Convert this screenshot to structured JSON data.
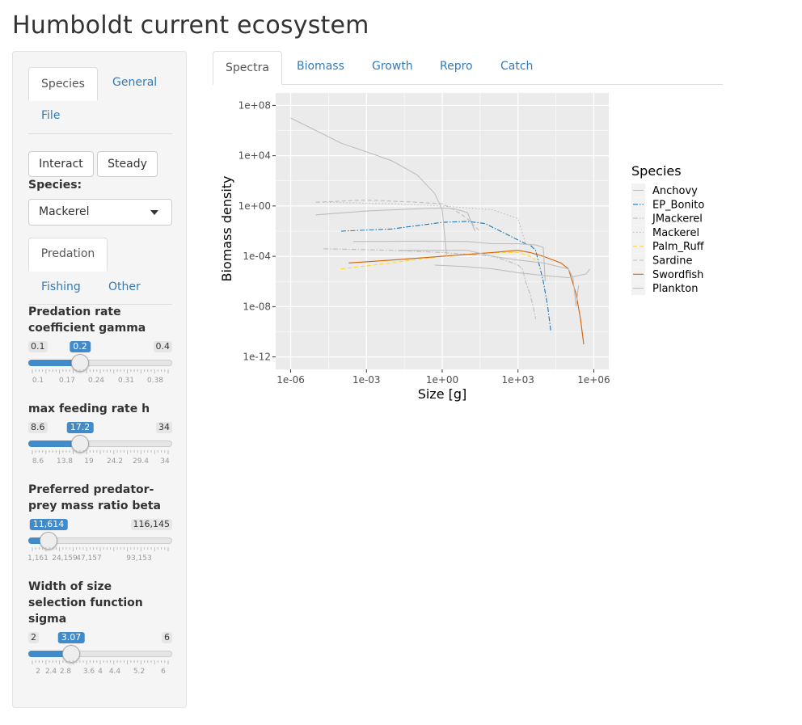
{
  "title": "Humboldt current ecosystem",
  "sidebar": {
    "tabs": [
      "Species",
      "General",
      "File"
    ],
    "buttons": {
      "interact": "Interact",
      "steady": "Steady"
    },
    "species_label": "Species:",
    "species_selected": "Mackerel",
    "subtabs": [
      "Predation",
      "Fishing",
      "Other"
    ],
    "sliders": [
      {
        "label": "Predation rate coefficient gamma",
        "min": "0.1",
        "max": "0.4",
        "value": "0.2",
        "fraction": 0.36,
        "ticks": [
          {
            "t": "0.1",
            "f": 0.07
          },
          {
            "t": "0.17",
            "f": 0.27
          },
          {
            "t": "0.24",
            "f": 0.47
          },
          {
            "t": "0.31",
            "f": 0.68
          },
          {
            "t": "0.38",
            "f": 0.88
          }
        ]
      },
      {
        "label": "max feeding rate h",
        "min": "8.6",
        "max": "34",
        "value": "17.2",
        "fraction": 0.36,
        "ticks": [
          {
            "t": "8.6",
            "f": 0.07
          },
          {
            "t": "13.8",
            "f": 0.25
          },
          {
            "t": "19",
            "f": 0.42
          },
          {
            "t": "24.2",
            "f": 0.6
          },
          {
            "t": "29.4",
            "f": 0.78
          },
          {
            "t": "34",
            "f": 0.95
          }
        ]
      },
      {
        "label": "Preferred predator-prey mass ratio beta",
        "min": "",
        "max": "116,145",
        "value": "11,614",
        "fraction": 0.14,
        "ticks": [
          {
            "t": "1,161",
            "f": 0.07
          },
          {
            "t": "24,159",
            "f": 0.25
          },
          {
            "t": "47,157",
            "f": 0.42
          },
          {
            "t": "93,153",
            "f": 0.77
          }
        ]
      },
      {
        "label": "Width of size selection function sigma",
        "min": "2",
        "max": "6",
        "value": "3.07",
        "fraction": 0.3,
        "ticks": [
          {
            "t": "2",
            "f": 0.07
          },
          {
            "t": "2.4",
            "f": 0.16
          },
          {
            "t": "2.8",
            "f": 0.26
          },
          {
            "t": "3.6",
            "f": 0.42
          },
          {
            "t": "4",
            "f": 0.5
          },
          {
            "t": "4.4",
            "f": 0.6
          },
          {
            "t": "5.2",
            "f": 0.77
          },
          {
            "t": "6",
            "f": 0.94
          }
        ]
      }
    ]
  },
  "main_tabs": [
    "Spectra",
    "Biomass",
    "Growth",
    "Repro",
    "Catch"
  ],
  "colors": {
    "accent": "#428bca",
    "link": "#337ab7",
    "panel": "#ebebeb"
  },
  "chart_data": {
    "type": "line",
    "xlabel": "Size [g]",
    "ylabel": "Biomass density",
    "x_log": true,
    "y_log": true,
    "xlim": [
      1e-06,
      1000000.0
    ],
    "ylim": [
      1e-12,
      100000000.0
    ],
    "x_ticks": [
      "1e-06",
      "1e-03",
      "1e+00",
      "1e+03",
      "1e+06"
    ],
    "y_ticks": [
      "1e+08",
      "1e+04",
      "1e+00",
      "1e-04",
      "1e-08",
      "1e-12"
    ],
    "legend_title": "Species",
    "legend_position": "right",
    "grid": true,
    "series": [
      {
        "name": "Anchovy",
        "color": "#bebebe",
        "dash": "solid",
        "x": [
          1e-05,
          0.001,
          0.1,
          1,
          3,
          10,
          20
        ],
        "y": [
          0.2,
          0.4,
          0.6,
          0.7,
          0.6,
          0.3,
          0.01
        ]
      },
      {
        "name": "EP_Bonito",
        "color": "#1f78b4",
        "dash": "dashdot",
        "x": [
          0.0001,
          0.01,
          1,
          10,
          50,
          200,
          1000,
          2000,
          3000,
          5000,
          10000,
          15000,
          20000
        ],
        "y": [
          0.01,
          0.015,
          0.05,
          0.06,
          0.04,
          0.01,
          0.002,
          0.001,
          0.0008,
          0.0003,
          1e-06,
          1e-08,
          1e-10
        ]
      },
      {
        "name": "JMackerel",
        "color": "#bebebe",
        "dash": "dashdot",
        "x": [
          2e-05,
          0.01,
          1,
          100,
          300,
          1000,
          1500,
          2000,
          3000,
          4000,
          5000
        ],
        "y": [
          0.0004,
          0.0003,
          0.0002,
          0.0001,
          5e-05,
          2e-05,
          1e-05,
          1e-06,
          1e-07,
          1e-08,
          1e-09
        ]
      },
      {
        "name": "Mackerel",
        "color": "#bebebe",
        "dash": "dotted",
        "x": [
          2e-05,
          0.01,
          1,
          100,
          1000,
          2000
        ],
        "y": [
          2,
          1.5,
          1,
          0.5,
          0.1,
          0.001
        ]
      },
      {
        "name": "Palm_Ruff",
        "color": "#ffd92f",
        "dash": "dashed",
        "x": [
          0.0001,
          0.01,
          1,
          100,
          1000,
          3000,
          5000
        ],
        "y": [
          1e-05,
          3e-05,
          0.0001,
          0.0002,
          0.0002,
          0.0001,
          5e-05
        ]
      },
      {
        "name": "Sardine",
        "color": "#bebebe",
        "dash": "dashed",
        "x": [
          1e-05,
          0.001,
          0.1,
          1,
          3,
          10,
          30
        ],
        "y": [
          2,
          3,
          2,
          1.5,
          0.5,
          0.1,
          0.01
        ]
      },
      {
        "name": "Swordfish",
        "color": "#d95f02",
        "dash": "solid",
        "x": [
          0.0002,
          0.01,
          1,
          100,
          1000,
          3000,
          10000,
          50000,
          100000,
          200000,
          300000,
          400000
        ],
        "y": [
          3e-05,
          5e-05,
          0.0001,
          0.0002,
          0.0003,
          0.0002,
          0.0001,
          3e-05,
          1e-05,
          1e-07,
          1e-09,
          1e-11
        ]
      },
      {
        "name": "Plankton",
        "color": "#bebebe",
        "dash": "solid",
        "x": [
          1e-06,
          1e-05,
          0.0001,
          0.001,
          0.01,
          0.1,
          0.5,
          1,
          1.5
        ],
        "y": [
          10000000,
          1000000,
          100000,
          20000,
          4000,
          300,
          10,
          0.5,
          0.0001
        ]
      },
      {
        "name": "",
        "color": "#bebebe",
        "dash": "solid",
        "x": [
          0.0003,
          0.1,
          10,
          100,
          1000,
          5000,
          10000,
          12000
        ],
        "y": [
          0.0015,
          0.0016,
          0.0015,
          0.001,
          0.001,
          0.0008,
          0.0005,
          1e-06
        ]
      },
      {
        "name": "",
        "color": "#bebebe",
        "dash": "solid",
        "x": [
          0.02,
          0.5,
          10,
          100,
          1000,
          10000,
          100000,
          150000,
          200000,
          250000
        ],
        "y": [
          0.0003,
          0.0003,
          0.0003,
          0.0001,
          5e-05,
          3e-05,
          1e-05,
          2e-06,
          1e-08,
          5e-07
        ]
      },
      {
        "name": "",
        "color": "#bebebe",
        "dash": "solid",
        "x": [
          0.5,
          10,
          100,
          1000,
          10000,
          100000,
          500000,
          700000
        ],
        "y": [
          2e-05,
          1.5e-05,
          1e-05,
          5e-06,
          3e-06,
          2e-06,
          4e-06,
          1e-05
        ]
      }
    ]
  }
}
